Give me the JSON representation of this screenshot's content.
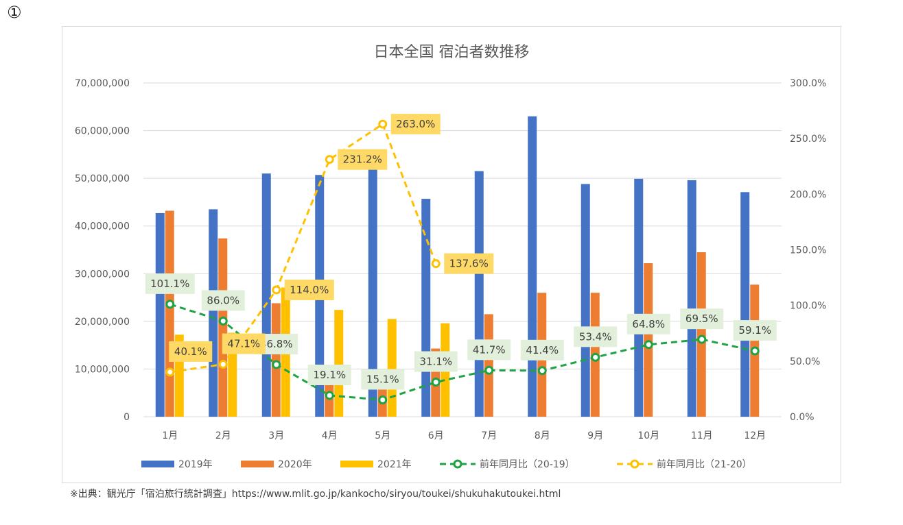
{
  "page_marker": "①",
  "source_note": "※出典：観光庁「宿泊旅行統計調査」https://www.mlit.go.jp/kankocho/siryou/toukei/shukuhakutoukei.html",
  "chart_data": {
    "type": "bar",
    "title": "日本全国 宿泊者数推移",
    "categories": [
      "1月",
      "2月",
      "3月",
      "4月",
      "5月",
      "6月",
      "7月",
      "8月",
      "9月",
      "10月",
      "11月",
      "12月"
    ],
    "y_left": {
      "min": 0,
      "max": 70000000,
      "step": 10000000,
      "ticks": [
        "0",
        "10,000,000",
        "20,000,000",
        "30,000,000",
        "40,000,000",
        "50,000,000",
        "60,000,000",
        "70,000,000"
      ]
    },
    "y_right": {
      "min": 0,
      "max": 300,
      "step": 50,
      "ticks": [
        "0.0%",
        "50.0%",
        "100.0%",
        "150.0%",
        "200.0%",
        "250.0%",
        "300.0%"
      ]
    },
    "grid": true,
    "legend_position": "bottom",
    "series": [
      {
        "name": "2019年",
        "type": "bar",
        "axis": "left",
        "color": "#4472c4",
        "values": [
          42700000,
          43500000,
          51000000,
          50700000,
          51900000,
          45700000,
          51500000,
          63000000,
          48800000,
          49900000,
          49600000,
          47100000
        ]
      },
      {
        "name": "2020年",
        "type": "bar",
        "axis": "left",
        "color": "#ed7d31",
        "values": [
          43200000,
          37400000,
          23800000,
          9700000,
          7800000,
          14300000,
          21500000,
          26000000,
          26000000,
          32200000,
          34500000,
          27700000
        ]
      },
      {
        "name": "2021年",
        "type": "bar",
        "axis": "left",
        "color": "#ffc000",
        "values": [
          17200000,
          17600000,
          27100000,
          22400000,
          20500000,
          19600000,
          null,
          null,
          null,
          null,
          null,
          null
        ]
      },
      {
        "name": "前年同月比（20-19）",
        "type": "line",
        "axis": "right",
        "color": "#1ea344",
        "label_bg": "#e2efda",
        "values": [
          101.1,
          86.0,
          46.8,
          19.1,
          15.1,
          31.1,
          41.7,
          41.4,
          53.4,
          64.8,
          69.5,
          59.1
        ],
        "labels": [
          "101.1%",
          "86.0%",
          "46.8%",
          "19.1%",
          "15.1%",
          "31.1%",
          "41.7%",
          "41.4%",
          "53.4%",
          "64.8%",
          "69.5%",
          "59.1%"
        ]
      },
      {
        "name": "前年同月比（21-20）",
        "type": "line",
        "axis": "right",
        "color": "#ffc000",
        "label_bg": "#ffd966",
        "values": [
          40.1,
          47.1,
          114.0,
          231.2,
          263.0,
          137.6,
          null,
          null,
          null,
          null,
          null,
          null
        ],
        "labels": [
          "40.1%",
          "47.1%",
          "114.0%",
          "231.2%",
          "263.0%",
          "137.6%",
          "",
          "",
          "",
          "",
          "",
          ""
        ]
      }
    ]
  }
}
